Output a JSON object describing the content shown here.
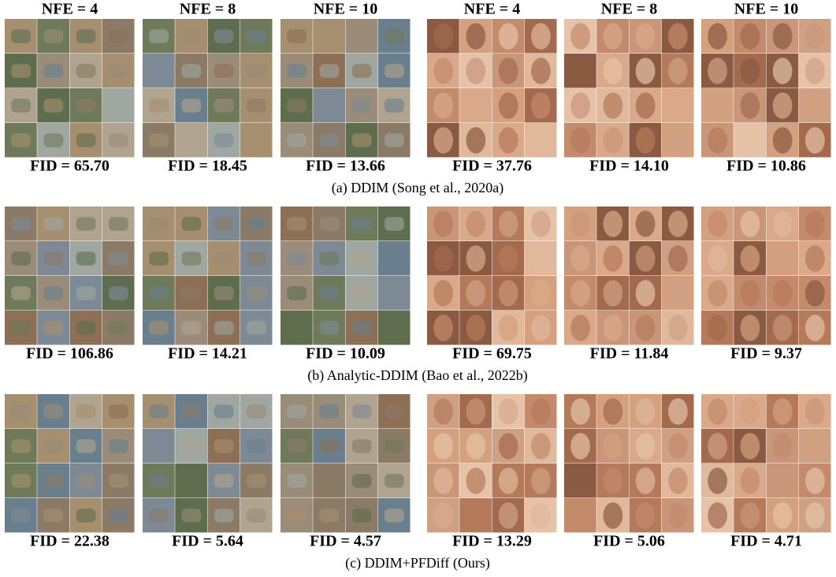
{
  "headers": [
    "NFE = 4",
    "NFE = 8",
    "NFE = 10",
    "NFE = 4",
    "NFE = 8",
    "NFE = 10"
  ],
  "sections": [
    {
      "caption": "(a) DDIM (Song et al., 2020a)",
      "fids": [
        "FID = 65.70",
        "FID = 18.45",
        "FID = 13.66",
        "FID = 37.76",
        "FID = 14.10",
        "FID = 10.86"
      ]
    },
    {
      "caption": "(b) Analytic-DDIM (Bao et al., 2022b)",
      "fids": [
        "FID = 106.86",
        "FID = 14.21",
        "FID = 10.09",
        "FID = 69.75",
        "FID = 11.84",
        "FID = 9.37"
      ]
    },
    {
      "caption": "(c) DDIM+PFDiff (Ours)",
      "fids": [
        "FID = 22.38",
        "FID = 5.64",
        "FID = 4.57",
        "FID = 13.29",
        "FID = 5.06",
        "FID = 4.71"
      ]
    }
  ]
}
